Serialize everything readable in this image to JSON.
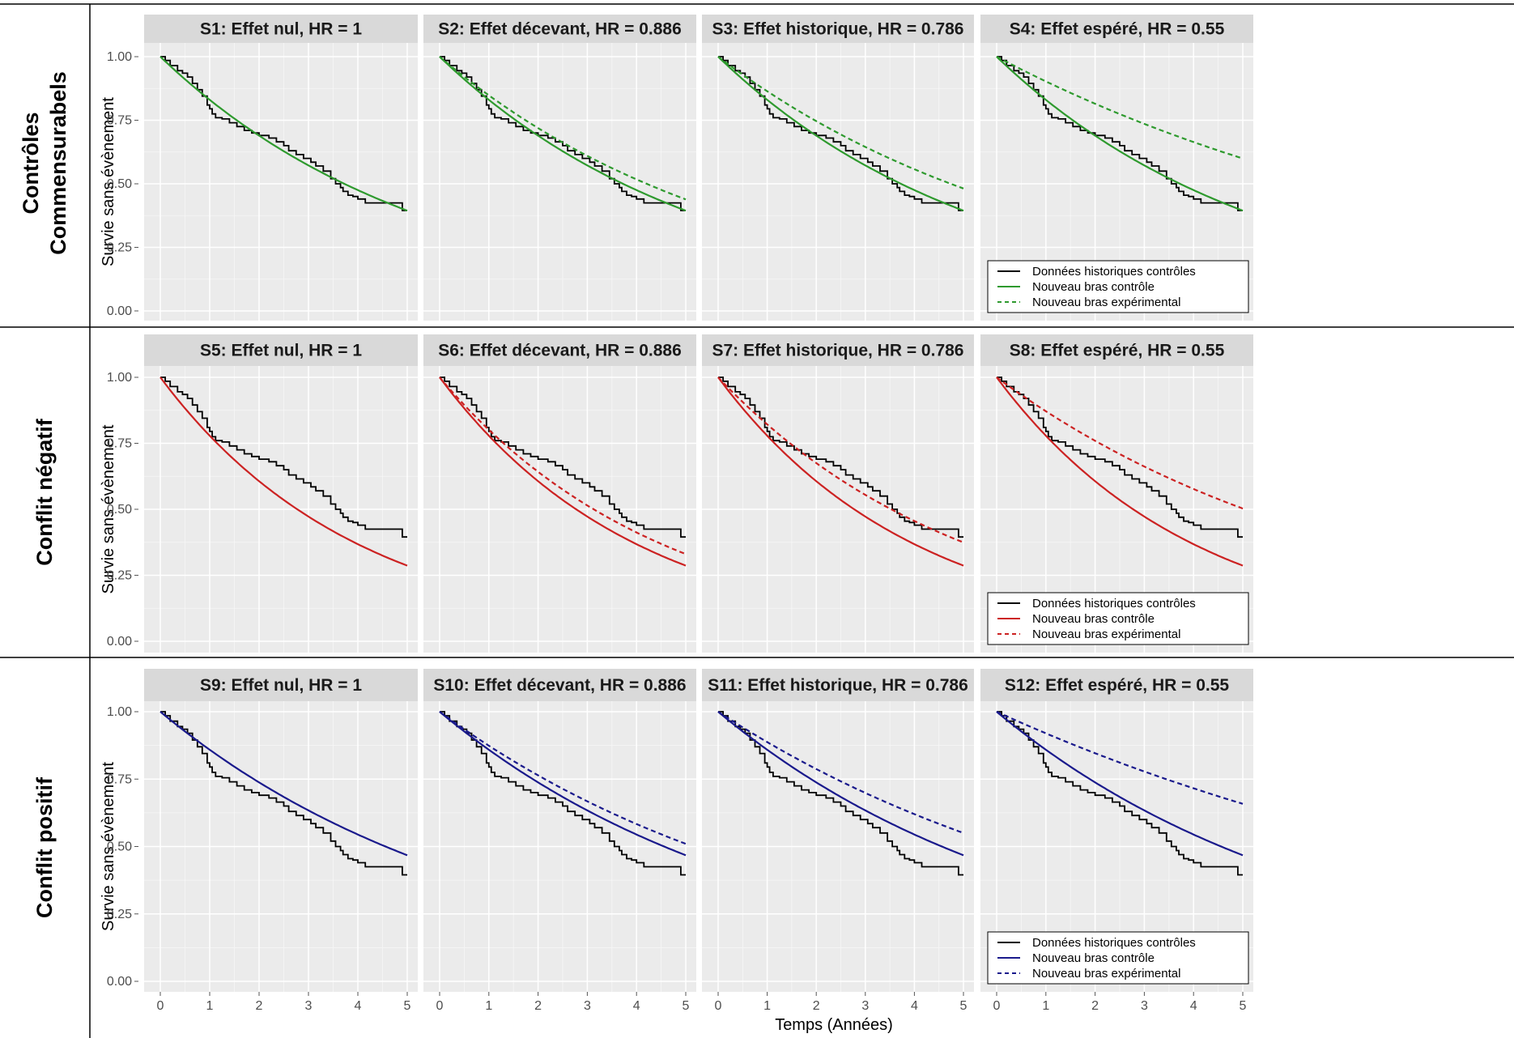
{
  "figure": {
    "x_axis_title": "Temps (Années)",
    "y_axis_title": "Survie sans évènement"
  },
  "rows": [
    {
      "label_lines": [
        "Contrôles",
        "Commensurabels"
      ],
      "color": "#2e9a2e",
      "ctrl_rate": 0.186,
      "panels": [
        {
          "title": "S1: Effet nul, HR = 1",
          "hr": 1
        },
        {
          "title": "S2: Effet décevant, HR = 0.886",
          "hr": 0.886
        },
        {
          "title": "S3: Effet historique, HR = 0.786",
          "hr": 0.786
        },
        {
          "title": "S4: Effet espéré, HR = 0.55",
          "hr": 0.55
        }
      ]
    },
    {
      "label_lines": [
        "Conflit négatif"
      ],
      "color": "#cc2222",
      "ctrl_rate": 0.25,
      "panels": [
        {
          "title": "S5: Effet nul, HR = 1",
          "hr": 1
        },
        {
          "title": "S6: Effet décevant, HR = 0.886",
          "hr": 0.886
        },
        {
          "title": "S7: Effet historique, HR = 0.786",
          "hr": 0.786
        },
        {
          "title": "S8: Effet espéré, HR = 0.55",
          "hr": 0.55
        }
      ]
    },
    {
      "label_lines": [
        "Conflit positif"
      ],
      "color": "#1a1a8c",
      "ctrl_rate": 0.152,
      "panels": [
        {
          "title": "S9: Effet nul, HR = 1",
          "hr": 1
        },
        {
          "title": "S10: Effet décevant, HR = 0.886",
          "hr": 0.886
        },
        {
          "title": "S11: Effet historique, HR = 0.786",
          "hr": 0.786
        },
        {
          "title": "S12: Effet espéré, HR = 0.55",
          "hr": 0.55
        }
      ]
    }
  ],
  "legend": {
    "items": [
      "Données historiques contrôles",
      "Nouveau bras contrôle",
      "Nouveau bras expérimental"
    ]
  },
  "chart_data": {
    "type": "line",
    "x": {
      "label": "Temps (Années)",
      "range": [
        0,
        5
      ],
      "ticks": [
        0,
        1,
        2,
        3,
        4,
        5
      ]
    },
    "y": {
      "label": "Survie sans évènement",
      "range": [
        0,
        1
      ],
      "ticks": [
        "0.00",
        "0.25",
        "0.50",
        "0.75",
        "1.00"
      ]
    },
    "grid": true,
    "legend_position": "bottom-right of last panel in each row",
    "historical_km": [
      [
        0.0,
        1.0
      ],
      [
        0.1,
        0.985
      ],
      [
        0.2,
        0.965
      ],
      [
        0.35,
        0.945
      ],
      [
        0.45,
        0.935
      ],
      [
        0.55,
        0.92
      ],
      [
        0.65,
        0.895
      ],
      [
        0.75,
        0.87
      ],
      [
        0.85,
        0.845
      ],
      [
        0.95,
        0.81
      ],
      [
        1.0,
        0.795
      ],
      [
        1.05,
        0.775
      ],
      [
        1.12,
        0.76
      ],
      [
        1.25,
        0.755
      ],
      [
        1.4,
        0.74
      ],
      [
        1.55,
        0.725
      ],
      [
        1.7,
        0.71
      ],
      [
        1.85,
        0.7
      ],
      [
        2.0,
        0.69
      ],
      [
        2.2,
        0.68
      ],
      [
        2.35,
        0.665
      ],
      [
        2.5,
        0.65
      ],
      [
        2.6,
        0.63
      ],
      [
        2.75,
        0.615
      ],
      [
        2.9,
        0.6
      ],
      [
        3.05,
        0.585
      ],
      [
        3.15,
        0.57
      ],
      [
        3.3,
        0.55
      ],
      [
        3.45,
        0.52
      ],
      [
        3.55,
        0.5
      ],
      [
        3.65,
        0.485
      ],
      [
        3.7,
        0.47
      ],
      [
        3.8,
        0.455
      ],
      [
        3.9,
        0.45
      ],
      [
        4.0,
        0.44
      ],
      [
        4.15,
        0.425
      ],
      [
        4.3,
        0.425
      ],
      [
        4.85,
        0.425
      ],
      [
        4.9,
        0.395
      ],
      [
        5.0,
        0.395
      ]
    ],
    "series": [
      {
        "name": "Données historiques contrôles",
        "style": "solid",
        "color": "#000000"
      },
      {
        "name": "Nouveau bras contrôle",
        "style": "solid",
        "model": "S(t)=exp(-rate*t)"
      },
      {
        "name": "Nouveau bras expérimental",
        "style": "dashed",
        "model": "S(t)=exp(-rate*HR*t)"
      }
    ],
    "panels": [
      {
        "title": "S1: Effet nul, HR = 1",
        "hr": 1,
        "ctrl_rate": 0.186,
        "control_color": "#2e9a2e"
      },
      {
        "title": "S2: Effet décevant, HR = 0.886",
        "hr": 0.886,
        "ctrl_rate": 0.186,
        "control_color": "#2e9a2e"
      },
      {
        "title": "S3: Effet historique, HR = 0.786",
        "hr": 0.786,
        "ctrl_rate": 0.186,
        "control_color": "#2e9a2e"
      },
      {
        "title": "S4: Effet espéré, HR = 0.55",
        "hr": 0.55,
        "ctrl_rate": 0.186,
        "control_color": "#2e9a2e"
      },
      {
        "title": "S5: Effet nul, HR = 1",
        "hr": 1,
        "ctrl_rate": 0.25,
        "control_color": "#cc2222"
      },
      {
        "title": "S6: Effet décevant, HR = 0.886",
        "hr": 0.886,
        "ctrl_rate": 0.25,
        "control_color": "#cc2222"
      },
      {
        "title": "S7: Effet historique, HR = 0.786",
        "hr": 0.786,
        "ctrl_rate": 0.25,
        "control_color": "#cc2222"
      },
      {
        "title": "S8: Effet espéré, HR = 0.55",
        "hr": 0.55,
        "ctrl_rate": 0.25,
        "control_color": "#cc2222"
      },
      {
        "title": "S9: Effet nul, HR = 1",
        "hr": 1,
        "ctrl_rate": 0.152,
        "control_color": "#1a1a8c"
      },
      {
        "title": "S10: Effet décevant, HR = 0.886",
        "hr": 0.886,
        "ctrl_rate": 0.152,
        "control_color": "#1a1a8c"
      },
      {
        "title": "S11: Effet historique, HR = 0.786",
        "hr": 0.786,
        "ctrl_rate": 0.152,
        "control_color": "#1a1a8c"
      },
      {
        "title": "S12: Effet espéré, HR = 0.55",
        "hr": 0.55,
        "ctrl_rate": 0.152,
        "control_color": "#1a1a8c"
      }
    ]
  }
}
